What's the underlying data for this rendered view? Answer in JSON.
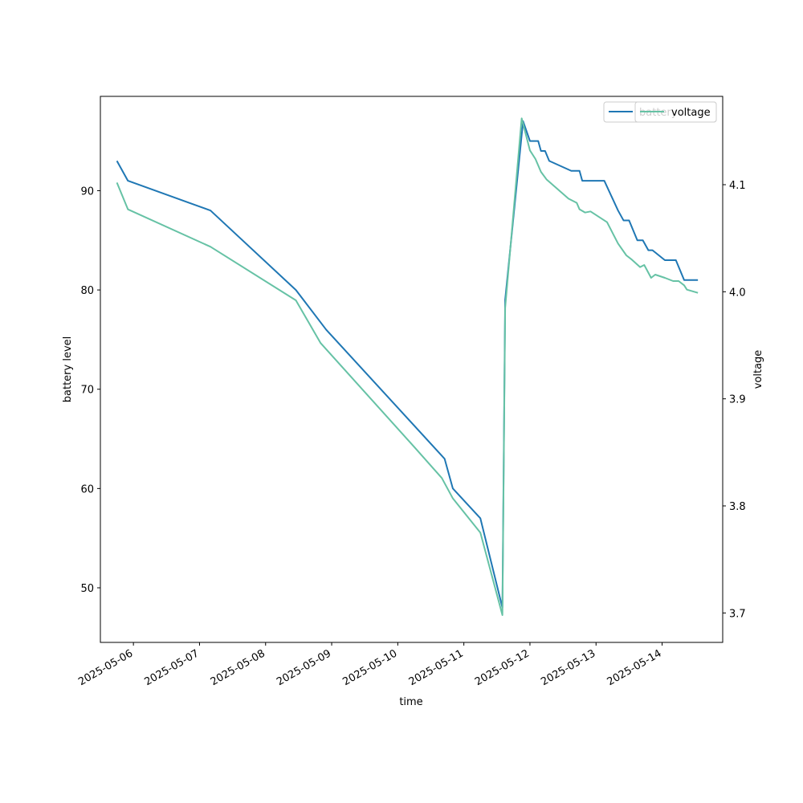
{
  "chart_data": {
    "type": "line",
    "xlabel": "time",
    "ylabel_left": "battery level",
    "ylabel_right": "voltage",
    "x_tick_labels": [
      "2025-05-06",
      "2025-05-07",
      "2025-05-08",
      "2025-05-09",
      "2025-05-10",
      "2025-05-11",
      "2025-05-12",
      "2025-05-13",
      "2025-05-14"
    ],
    "x_range": [
      "2025-05-05 12:00",
      "2025-05-14 22:00"
    ],
    "y_left_ticks": [
      50,
      60,
      70,
      80,
      90
    ],
    "y_left_range": [
      44.5,
      99.5
    ],
    "y_right_ticks": [
      "3.7",
      "3.8",
      "3.9",
      "4.0",
      "4.1"
    ],
    "y_right_range": [
      3.6725,
      4.1825
    ],
    "legend_placement": "top-right",
    "grid": false,
    "series": [
      {
        "name": "battery",
        "axis": "left",
        "color": "#1f77b4",
        "points": [
          [
            "2025-05-05 18:00",
            93
          ],
          [
            "2025-05-05 22:00",
            91
          ],
          [
            "2025-05-07 04:00",
            88
          ],
          [
            "2025-05-08 11:00",
            80
          ],
          [
            "2025-05-08 22:00",
            76
          ],
          [
            "2025-05-10 17:00",
            63
          ],
          [
            "2025-05-10 20:00",
            60
          ],
          [
            "2025-05-11 06:00",
            57
          ],
          [
            "2025-05-11 14:00",
            48
          ],
          [
            "2025-05-11 15:00",
            79
          ],
          [
            "2025-05-11 21:30",
            97
          ],
          [
            "2025-05-12 00:00",
            95
          ],
          [
            "2025-05-12 03:00",
            95
          ],
          [
            "2025-05-12 04:00",
            94
          ],
          [
            "2025-05-12 05:30",
            94
          ],
          [
            "2025-05-12 07:00",
            93
          ],
          [
            "2025-05-12 15:00",
            92
          ],
          [
            "2025-05-12 18:00",
            92
          ],
          [
            "2025-05-12 19:00",
            91
          ],
          [
            "2025-05-13 03:00",
            91
          ],
          [
            "2025-05-13 08:00",
            88
          ],
          [
            "2025-05-13 10:00",
            87
          ],
          [
            "2025-05-13 12:00",
            87
          ],
          [
            "2025-05-13 15:00",
            85
          ],
          [
            "2025-05-13 17:00",
            85
          ],
          [
            "2025-05-13 19:00",
            84
          ],
          [
            "2025-05-13 20:30",
            84
          ],
          [
            "2025-05-14 01:00",
            83
          ],
          [
            "2025-05-14 05:00",
            83
          ],
          [
            "2025-05-14 08:00",
            81
          ],
          [
            "2025-05-14 13:00",
            81
          ]
        ]
      },
      {
        "name": "voltage",
        "axis": "right",
        "color": "#66c2a5",
        "points": [
          [
            "2025-05-05 18:00",
            4.102
          ],
          [
            "2025-05-05 22:00",
            4.077
          ],
          [
            "2025-05-07 04:00",
            4.042
          ],
          [
            "2025-05-08 11:00",
            3.992
          ],
          [
            "2025-05-08 20:00",
            3.952
          ],
          [
            "2025-05-10 06:00",
            3.855
          ],
          [
            "2025-05-10 16:00",
            3.826
          ],
          [
            "2025-05-10 20:00",
            3.807
          ],
          [
            "2025-05-11 06:00",
            3.775
          ],
          [
            "2025-05-11 14:00",
            3.698
          ],
          [
            "2025-05-11 15:00",
            3.985
          ],
          [
            "2025-05-11 21:00",
            4.162
          ],
          [
            "2025-05-12 00:00",
            4.132
          ],
          [
            "2025-05-12 02:00",
            4.124
          ],
          [
            "2025-05-12 04:00",
            4.112
          ],
          [
            "2025-05-12 06:00",
            4.105
          ],
          [
            "2025-05-12 10:00",
            4.096
          ],
          [
            "2025-05-12 14:00",
            4.087
          ],
          [
            "2025-05-12 17:00",
            4.083
          ],
          [
            "2025-05-12 18:00",
            4.077
          ],
          [
            "2025-05-12 20:00",
            4.074
          ],
          [
            "2025-05-12 22:00",
            4.075
          ],
          [
            "2025-05-13 04:00",
            4.065
          ],
          [
            "2025-05-13 08:00",
            4.045
          ],
          [
            "2025-05-13 11:00",
            4.034
          ],
          [
            "2025-05-13 13:00",
            4.03
          ],
          [
            "2025-05-13 16:00",
            4.023
          ],
          [
            "2025-05-13 17:30",
            4.025
          ],
          [
            "2025-05-13 20:00",
            4.013
          ],
          [
            "2025-05-13 21:30",
            4.016
          ],
          [
            "2025-05-14 01:00",
            4.013
          ],
          [
            "2025-05-14 04:00",
            4.01
          ],
          [
            "2025-05-14 06:00",
            4.01
          ],
          [
            "2025-05-14 08:00",
            4.006
          ],
          [
            "2025-05-14 09:00",
            4.002
          ],
          [
            "2025-05-14 13:00",
            3.999
          ]
        ]
      }
    ]
  }
}
